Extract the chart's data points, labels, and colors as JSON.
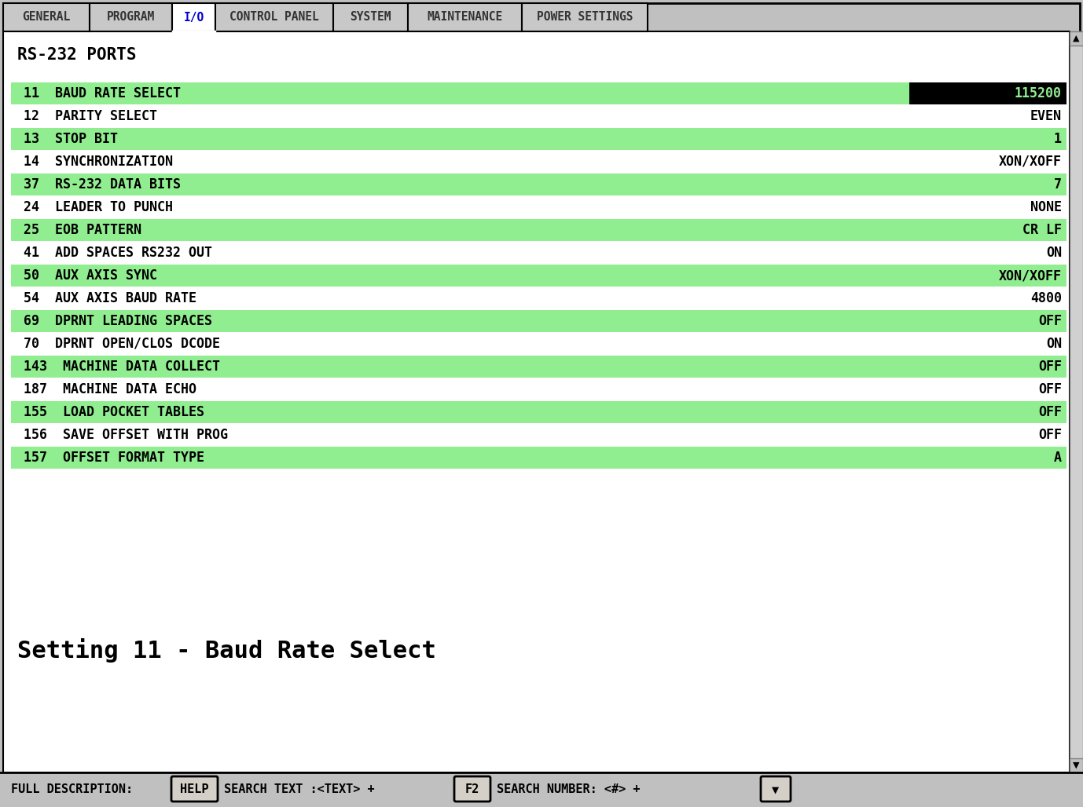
{
  "tabs": [
    {
      "name": "GENERAL",
      "active": false
    },
    {
      "name": "PROGRAM",
      "active": false
    },
    {
      "name": "I/O",
      "active": true
    },
    {
      "name": "CONTROL PANEL",
      "active": false
    },
    {
      "name": "SYSTEM",
      "active": false
    },
    {
      "name": "MAINTENANCE",
      "active": false
    },
    {
      "name": "POWER SETTINGS",
      "active": false
    }
  ],
  "section_title": "RS-232 PORTS",
  "rows": [
    {
      "num": "11",
      "label": "BAUD RATE SELECT",
      "value": "115200",
      "green": true,
      "inverted": true
    },
    {
      "num": "12",
      "label": "PARITY SELECT",
      "value": "EVEN",
      "green": false,
      "inverted": false
    },
    {
      "num": "13",
      "label": "STOP BIT",
      "value": "1",
      "green": true,
      "inverted": false
    },
    {
      "num": "14",
      "label": "SYNCHRONIZATION",
      "value": "XON/XOFF",
      "green": false,
      "inverted": false
    },
    {
      "num": "37",
      "label": "RS-232 DATA BITS",
      "value": "7",
      "green": true,
      "inverted": false
    },
    {
      "num": "24",
      "label": "LEADER TO PUNCH",
      "value": "NONE",
      "green": false,
      "inverted": false
    },
    {
      "num": "25",
      "label": "EOB PATTERN",
      "value": "CR LF",
      "green": true,
      "inverted": false
    },
    {
      "num": "41",
      "label": "ADD SPACES RS232 OUT",
      "value": "ON",
      "green": false,
      "inverted": false
    },
    {
      "num": "50",
      "label": "AUX AXIS SYNC",
      "value": "XON/XOFF",
      "green": true,
      "inverted": false
    },
    {
      "num": "54",
      "label": "AUX AXIS BAUD RATE",
      "value": "4800",
      "green": false,
      "inverted": false
    },
    {
      "num": "69",
      "label": "DPRNT LEADING SPACES",
      "value": "OFF",
      "green": true,
      "inverted": false
    },
    {
      "num": "70",
      "label": "DPRNT OPEN/CLOS DCODE",
      "value": "ON",
      "green": false,
      "inverted": false
    },
    {
      "num": "143",
      "label": "MACHINE DATA COLLECT",
      "value": "OFF",
      "green": true,
      "inverted": false
    },
    {
      "num": "187",
      "label": "MACHINE DATA ECHO",
      "value": "OFF",
      "green": false,
      "inverted": false
    },
    {
      "num": "155",
      "label": "LOAD POCKET TABLES",
      "value": "OFF",
      "green": true,
      "inverted": false
    },
    {
      "num": "156",
      "label": "SAVE OFFSET WITH PROG",
      "value": "OFF",
      "green": false,
      "inverted": false
    },
    {
      "num": "157",
      "label": "OFFSET FORMAT TYPE",
      "value": "A",
      "green": true,
      "inverted": false
    }
  ],
  "bottom_label": "Setting 11 - Baud Rate Select",
  "bg_color": "#c0c0c0",
  "content_bg": "#ffffff",
  "row_green": "#90ee90",
  "row_white": "#ffffff"
}
